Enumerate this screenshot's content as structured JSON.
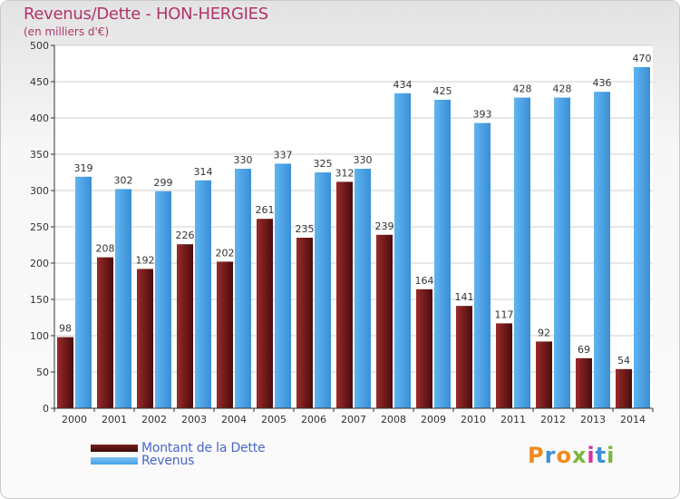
{
  "header": {
    "title": "Revenus/Dette - HON-HERGIES",
    "subtitle": "(en milliers d'€)"
  },
  "legend": {
    "debt_label": "Montant de la Dette",
    "revenue_label": "Revenus"
  },
  "logo": {
    "letters": [
      "P",
      "r",
      "o",
      "x",
      "i",
      "t",
      "i"
    ],
    "colors": [
      "#f08a1c",
      "#3c8fd8",
      "#f08a1c",
      "#7ab83a",
      "#d9309a",
      "#3c8fd8",
      "#7ab83a"
    ]
  },
  "colors": {
    "debt": "#7a1c1c",
    "revenue": "#4aa3e8"
  },
  "chart_data": {
    "type": "bar",
    "title": "Revenus/Dette - HON-HERGIES",
    "ylabel": "(en milliers d'€)",
    "xlabel": "",
    "categories": [
      "2000",
      "2001",
      "2002",
      "2003",
      "2004",
      "2005",
      "2006",
      "2007",
      "2008",
      "2009",
      "2010",
      "2011",
      "2012",
      "2013",
      "2014"
    ],
    "series": [
      {
        "name": "Montant de la Dette",
        "values": [
          98,
          208,
          192,
          226,
          202,
          261,
          235,
          312,
          239,
          164,
          141,
          117,
          92,
          69,
          54
        ]
      },
      {
        "name": "Revenus",
        "values": [
          319,
          302,
          299,
          314,
          330,
          337,
          325,
          330,
          434,
          425,
          393,
          428,
          428,
          436,
          470
        ]
      }
    ],
    "ylim": [
      0,
      500
    ],
    "yticks": [
      0,
      50,
      100,
      150,
      200,
      250,
      300,
      350,
      400,
      450,
      500
    ],
    "grid": true,
    "legend_position": "bottom-left"
  }
}
